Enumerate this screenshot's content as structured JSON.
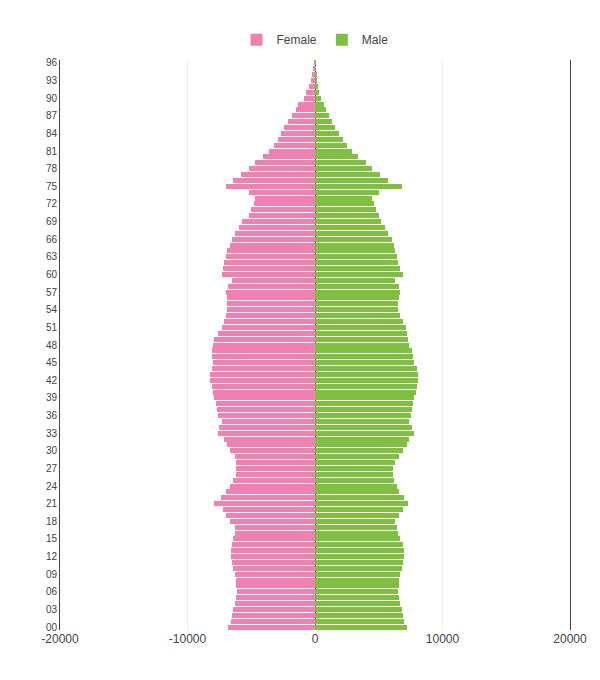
{
  "chart_data": {
    "type": "bar",
    "orientation": "horizontal",
    "categories": [
      0,
      1,
      2,
      3,
      4,
      5,
      6,
      7,
      8,
      9,
      10,
      11,
      12,
      13,
      14,
      15,
      16,
      17,
      18,
      19,
      20,
      21,
      22,
      23,
      24,
      25,
      26,
      27,
      28,
      29,
      30,
      31,
      32,
      33,
      34,
      35,
      36,
      37,
      38,
      39,
      40,
      41,
      42,
      43,
      44,
      45,
      46,
      47,
      48,
      49,
      50,
      51,
      52,
      53,
      54,
      55,
      56,
      57,
      58,
      59,
      60,
      61,
      62,
      63,
      64,
      65,
      66,
      67,
      68,
      69,
      70,
      71,
      72,
      73,
      74,
      75,
      76,
      77,
      78,
      79,
      80,
      81,
      82,
      83,
      84,
      85,
      86,
      87,
      88,
      89,
      90,
      91,
      92,
      93,
      94,
      95,
      96
    ],
    "series": [
      {
        "name": "Female",
        "color": "#f080b0",
        "values": [
          -6800,
          -6600,
          -6500,
          -6400,
          -6300,
          -6200,
          -6100,
          -6200,
          -6200,
          -6300,
          -6400,
          -6500,
          -6600,
          -6600,
          -6500,
          -6400,
          -6300,
          -6300,
          -6700,
          -7000,
          -7200,
          -7900,
          -7400,
          -7000,
          -6700,
          -6400,
          -6200,
          -6200,
          -6200,
          -6300,
          -6700,
          -6900,
          -7100,
          -7600,
          -7500,
          -7300,
          -7600,
          -7700,
          -7800,
          -7900,
          -8000,
          -8100,
          -8200,
          -8200,
          -8100,
          -8000,
          -8100,
          -8100,
          -8000,
          -7900,
          -7600,
          -7300,
          -7100,
          -7000,
          -6900,
          -6900,
          -6900,
          -7000,
          -6800,
          -6500,
          -7300,
          -7200,
          -7100,
          -7000,
          -6900,
          -6700,
          -6500,
          -6300,
          -6000,
          -5700,
          -5200,
          -5000,
          -4800,
          -4700,
          -5200,
          -7000,
          -6400,
          -5800,
          -5200,
          -4700,
          -4100,
          -3600,
          -3200,
          -2900,
          -2700,
          -2400,
          -2100,
          -1800,
          -1500,
          -1300,
          -900,
          -700,
          -500,
          -350,
          -230,
          -140,
          -70
        ]
      },
      {
        "name": "Male",
        "color": "#80c040",
        "values": [
          7200,
          7000,
          6900,
          6800,
          6700,
          6600,
          6500,
          6600,
          6600,
          6700,
          6800,
          6900,
          7000,
          7000,
          6900,
          6700,
          6500,
          6400,
          6300,
          6600,
          6900,
          7300,
          7000,
          6600,
          6400,
          6200,
          6100,
          6100,
          6300,
          6600,
          6900,
          7200,
          7400,
          7800,
          7600,
          7400,
          7500,
          7600,
          7700,
          7800,
          7900,
          8000,
          8100,
          8100,
          8000,
          7800,
          7700,
          7600,
          7400,
          7300,
          7200,
          7100,
          6900,
          6700,
          6500,
          6500,
          6600,
          6700,
          6600,
          6300,
          6900,
          6700,
          6500,
          6400,
          6300,
          6200,
          6000,
          5700,
          5500,
          5200,
          5000,
          4800,
          4600,
          4500,
          5000,
          6800,
          5700,
          5100,
          4500,
          4000,
          3400,
          2900,
          2500,
          2200,
          1900,
          1600,
          1300,
          1100,
          900,
          700,
          500,
          350,
          240,
          160,
          110,
          60,
          30
        ]
      }
    ],
    "xlim": [
      -20000,
      20000
    ],
    "xticks": [
      -20000,
      -10000,
      0,
      10000,
      20000
    ],
    "ylim": [
      -0.5,
      96.5
    ],
    "yticks": [
      {
        "value": 0,
        "label": "00"
      },
      {
        "value": 3,
        "label": "03"
      },
      {
        "value": 6,
        "label": "06"
      },
      {
        "value": 9,
        "label": "09"
      },
      12,
      15,
      18,
      21,
      24,
      27,
      30,
      33,
      36,
      39,
      42,
      45,
      48,
      51,
      54,
      57,
      60,
      63,
      66,
      69,
      72,
      75,
      78,
      81,
      84,
      87,
      90,
      93,
      96
    ],
    "grid": "x",
    "legend": "top"
  }
}
